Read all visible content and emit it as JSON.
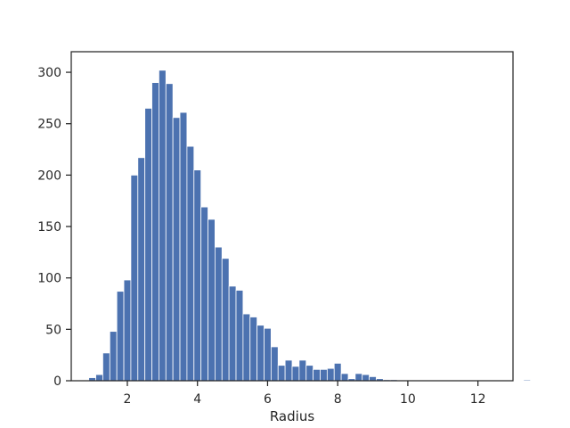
{
  "chart_data": {
    "type": "histogram",
    "title": "",
    "xlabel": "Radius",
    "ylabel": "",
    "xlim": [
      0.4,
      13.0
    ],
    "ylim": [
      0,
      320
    ],
    "xticks": [
      2,
      4,
      6,
      8,
      10,
      12
    ],
    "yticks": [
      0,
      50,
      100,
      150,
      200,
      250,
      300
    ],
    "grid": false,
    "bar_color": "#4c72b0",
    "bin_start": 0.9,
    "bin_width": 0.2,
    "values": [
      3,
      6,
      27,
      48,
      87,
      98,
      200,
      217,
      265,
      290,
      302,
      289,
      256,
      261,
      228,
      205,
      169,
      157,
      130,
      119,
      92,
      88,
      65,
      62,
      54,
      51,
      33,
      15,
      20,
      14,
      20,
      15,
      11,
      11,
      12,
      17,
      7,
      2,
      7,
      6,
      4,
      2,
      1,
      1,
      0,
      0,
      0,
      0,
      0,
      0,
      0,
      0,
      0,
      0,
      0,
      0,
      0,
      0,
      0,
      0,
      0,
      0,
      1,
      0,
      0,
      0,
      0,
      0,
      0,
      0,
      0,
      0,
      0,
      0,
      0,
      0,
      0,
      0,
      0
    ]
  }
}
